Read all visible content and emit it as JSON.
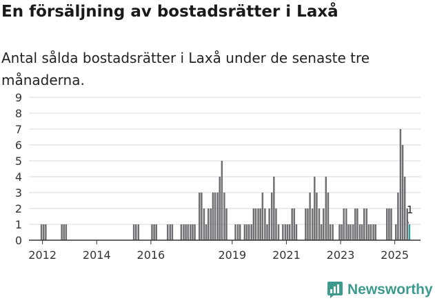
{
  "title": "En försäljning av bostadsrätter i Laxå",
  "subtitle": "Antal sålda bostadsrätter i Laxå under de senaste tre månaderna.",
  "brand": "Newsworthy",
  "colors": {
    "bar": "#6f6e73",
    "highlight": "#2e9c93",
    "grid": "#d9d9d9",
    "brand": "#3d9a8f"
  },
  "chart_data": {
    "type": "bar",
    "title": "En försäljning av bostadsrätter i Laxå",
    "xlabel": "",
    "ylabel": "",
    "ylim": [
      0,
      9
    ],
    "yticks": [
      "0",
      "1",
      "2",
      "3",
      "4",
      "5",
      "6",
      "7",
      "8",
      "9"
    ],
    "xticks": [
      {
        "label": "2012",
        "x": 2012.0
      },
      {
        "label": "2014",
        "x": 2014.0
      },
      {
        "label": "2016",
        "x": 2016.0
      },
      {
        "label": "2019",
        "x": 2019.0
      },
      {
        "label": "2021",
        "x": 2021.0
      },
      {
        "label": "2023",
        "x": 2023.0
      },
      {
        "label": "2025",
        "x": 2025.0
      }
    ],
    "x_range": [
      2011.5,
      2025.95
    ],
    "bar_width_years": 0.0833,
    "series": [
      {
        "name": "Sålda bostadsrätter",
        "points": [
          {
            "x": 2011.96,
            "y": 1
          },
          {
            "x": 2012.04,
            "y": 1
          },
          {
            "x": 2012.12,
            "y": 1
          },
          {
            "x": 2012.71,
            "y": 1
          },
          {
            "x": 2012.79,
            "y": 1
          },
          {
            "x": 2012.87,
            "y": 1
          },
          {
            "x": 2015.37,
            "y": 1
          },
          {
            "x": 2015.45,
            "y": 1
          },
          {
            "x": 2015.54,
            "y": 1
          },
          {
            "x": 2016.04,
            "y": 1
          },
          {
            "x": 2016.12,
            "y": 1
          },
          {
            "x": 2016.2,
            "y": 1
          },
          {
            "x": 2016.62,
            "y": 1
          },
          {
            "x": 2016.71,
            "y": 1
          },
          {
            "x": 2016.79,
            "y": 1
          },
          {
            "x": 2017.12,
            "y": 1
          },
          {
            "x": 2017.21,
            "y": 1
          },
          {
            "x": 2017.29,
            "y": 1
          },
          {
            "x": 2017.37,
            "y": 1
          },
          {
            "x": 2017.46,
            "y": 1
          },
          {
            "x": 2017.54,
            "y": 1
          },
          {
            "x": 2017.62,
            "y": 1
          },
          {
            "x": 2017.79,
            "y": 3
          },
          {
            "x": 2017.87,
            "y": 3
          },
          {
            "x": 2017.96,
            "y": 2
          },
          {
            "x": 2018.04,
            "y": 1
          },
          {
            "x": 2018.12,
            "y": 2
          },
          {
            "x": 2018.21,
            "y": 2
          },
          {
            "x": 2018.29,
            "y": 3
          },
          {
            "x": 2018.37,
            "y": 3
          },
          {
            "x": 2018.46,
            "y": 3
          },
          {
            "x": 2018.54,
            "y": 4
          },
          {
            "x": 2018.62,
            "y": 5
          },
          {
            "x": 2018.71,
            "y": 3
          },
          {
            "x": 2018.79,
            "y": 2
          },
          {
            "x": 2019.12,
            "y": 1
          },
          {
            "x": 2019.21,
            "y": 1
          },
          {
            "x": 2019.29,
            "y": 1
          },
          {
            "x": 2019.46,
            "y": 1
          },
          {
            "x": 2019.54,
            "y": 1
          },
          {
            "x": 2019.62,
            "y": 1
          },
          {
            "x": 2019.71,
            "y": 1
          },
          {
            "x": 2019.79,
            "y": 2
          },
          {
            "x": 2019.87,
            "y": 2
          },
          {
            "x": 2019.96,
            "y": 2
          },
          {
            "x": 2020.04,
            "y": 2
          },
          {
            "x": 2020.12,
            "y": 3
          },
          {
            "x": 2020.21,
            "y": 2
          },
          {
            "x": 2020.29,
            "y": 1
          },
          {
            "x": 2020.37,
            "y": 2
          },
          {
            "x": 2020.46,
            "y": 3
          },
          {
            "x": 2020.54,
            "y": 4
          },
          {
            "x": 2020.62,
            "y": 2
          },
          {
            "x": 2020.71,
            "y": 1
          },
          {
            "x": 2020.87,
            "y": 1
          },
          {
            "x": 2020.96,
            "y": 1
          },
          {
            "x": 2021.04,
            "y": 1
          },
          {
            "x": 2021.12,
            "y": 1
          },
          {
            "x": 2021.21,
            "y": 2
          },
          {
            "x": 2021.29,
            "y": 2
          },
          {
            "x": 2021.37,
            "y": 1
          },
          {
            "x": 2021.71,
            "y": 2
          },
          {
            "x": 2021.79,
            "y": 2
          },
          {
            "x": 2021.87,
            "y": 3
          },
          {
            "x": 2021.96,
            "y": 2
          },
          {
            "x": 2022.04,
            "y": 4
          },
          {
            "x": 2022.12,
            "y": 3
          },
          {
            "x": 2022.21,
            "y": 2
          },
          {
            "x": 2022.29,
            "y": 1
          },
          {
            "x": 2022.37,
            "y": 2
          },
          {
            "x": 2022.46,
            "y": 4
          },
          {
            "x": 2022.54,
            "y": 3
          },
          {
            "x": 2022.62,
            "y": 1
          },
          {
            "x": 2022.71,
            "y": 1
          },
          {
            "x": 2022.96,
            "y": 1
          },
          {
            "x": 2023.04,
            "y": 1
          },
          {
            "x": 2023.12,
            "y": 2
          },
          {
            "x": 2023.21,
            "y": 2
          },
          {
            "x": 2023.29,
            "y": 1
          },
          {
            "x": 2023.37,
            "y": 1
          },
          {
            "x": 2023.46,
            "y": 1
          },
          {
            "x": 2023.54,
            "y": 2
          },
          {
            "x": 2023.62,
            "y": 2
          },
          {
            "x": 2023.71,
            "y": 1
          },
          {
            "x": 2023.79,
            "y": 1
          },
          {
            "x": 2023.87,
            "y": 2
          },
          {
            "x": 2023.96,
            "y": 2
          },
          {
            "x": 2024.04,
            "y": 1
          },
          {
            "x": 2024.12,
            "y": 1
          },
          {
            "x": 2024.21,
            "y": 1
          },
          {
            "x": 2024.29,
            "y": 1
          },
          {
            "x": 2024.71,
            "y": 2
          },
          {
            "x": 2024.79,
            "y": 2
          },
          {
            "x": 2024.87,
            "y": 2
          },
          {
            "x": 2025.04,
            "y": 1
          },
          {
            "x": 2025.12,
            "y": 3
          },
          {
            "x": 2025.21,
            "y": 7
          },
          {
            "x": 2025.29,
            "y": 6
          },
          {
            "x": 2025.37,
            "y": 4
          },
          {
            "x": 2025.46,
            "y": 2
          },
          {
            "x": 2025.54,
            "y": 1,
            "highlight": true
          }
        ]
      }
    ],
    "annotations": [
      {
        "x": 2025.54,
        "y": 1,
        "text": "1"
      }
    ]
  }
}
